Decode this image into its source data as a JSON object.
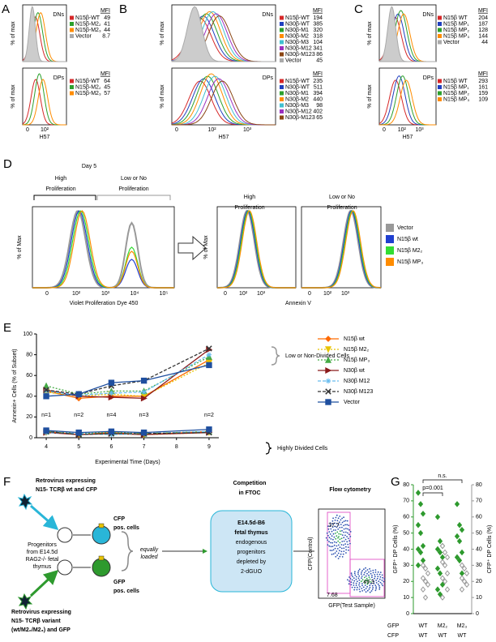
{
  "panel_a": {
    "letter": "A",
    "ylabel": "% of max",
    "xlabel": "H57",
    "xticks": [
      "0",
      "10²"
    ],
    "mfi_header": "MFI",
    "top": {
      "label": "DNs",
      "rows": [
        {
          "name": "N15β-WT",
          "mfi": 49,
          "color": "#d62728"
        },
        {
          "name": "N15β-M2₂",
          "mfi": 41,
          "color": "#2ca02c"
        },
        {
          "name": "N15β-M2₃",
          "mfi": 44,
          "color": "#ff8c00"
        },
        {
          "name": "Vector",
          "mfi": 8.7,
          "color": "#aaaaaa",
          "filled": true
        }
      ]
    },
    "bottom": {
      "label": "DPs",
      "rows": [
        {
          "name": "N15β-WT",
          "mfi": 64,
          "color": "#d62728"
        },
        {
          "name": "N15β-M2₂",
          "mfi": 45,
          "color": "#2ca02c"
        },
        {
          "name": "N15β-M2₃",
          "mfi": 57,
          "color": "#ff8c00"
        }
      ]
    }
  },
  "panel_b": {
    "letter": "B",
    "ylabel": "% of max",
    "xlabel": "H57",
    "xticks": [
      "0",
      "10²",
      "10³"
    ],
    "mfi_header": "MFI",
    "top": {
      "label": "DNs",
      "rows": [
        {
          "name": "N15β-WT",
          "mfi": 194,
          "color": "#d62728"
        },
        {
          "name": "N30β-WT",
          "mfi": 385,
          "color": "#1f3fbf"
        },
        {
          "name": "N30β-M1",
          "mfi": 320,
          "color": "#2ca02c"
        },
        {
          "name": "N30β-M2",
          "mfi": 318,
          "color": "#ff8c00"
        },
        {
          "name": "N30β-M3",
          "mfi": 104,
          "color": "#40c0d0"
        },
        {
          "name": "N30β-M12",
          "mfi": 341,
          "color": "#9b30c0"
        },
        {
          "name": "N30β-M123",
          "mfi": 86,
          "color": "#8b4513"
        },
        {
          "name": "Vector",
          "mfi": 45,
          "color": "#aaaaaa",
          "filled": true
        }
      ]
    },
    "bottom": {
      "label": "DPs",
      "rows": [
        {
          "name": "N15β-WT",
          "mfi": 235,
          "color": "#d62728"
        },
        {
          "name": "N30β-WT",
          "mfi": 511,
          "color": "#1f3fbf"
        },
        {
          "name": "N30β-M1",
          "mfi": 394,
          "color": "#2ca02c"
        },
        {
          "name": "N30β-M2",
          "mfi": 440,
          "color": "#ff8c00"
        },
        {
          "name": "N30β-M3",
          "mfi": 98,
          "color": "#40c0d0"
        },
        {
          "name": "N30β-M12",
          "mfi": 402,
          "color": "#9b30c0"
        },
        {
          "name": "N30β-M123",
          "mfi": 65,
          "color": "#8b4513"
        }
      ]
    }
  },
  "panel_c": {
    "letter": "C",
    "ylabel": "% of max",
    "xlabel": "H57",
    "xticks": [
      "0",
      "10²",
      "10³"
    ],
    "mfi_header": "MFI",
    "top": {
      "label": "DNs",
      "rows": [
        {
          "name": "N15β WT",
          "mfi": 204,
          "color": "#d62728"
        },
        {
          "name": "N15β MP₁",
          "mfi": 187,
          "color": "#1f3fbf"
        },
        {
          "name": "N15β MP₂",
          "mfi": 128,
          "color": "#2ca02c"
        },
        {
          "name": "N15β MP₃",
          "mfi": 144,
          "color": "#ff8c00"
        },
        {
          "name": "Vector",
          "mfi": 44,
          "color": "#aaaaaa",
          "filled": true
        }
      ]
    },
    "bottom": {
      "label": "DPs",
      "rows": [
        {
          "name": "N15β WT",
          "mfi": 293,
          "color": "#d62728"
        },
        {
          "name": "N15β MP₁",
          "mfi": 161,
          "color": "#1f3fbf"
        },
        {
          "name": "N15β MP₂",
          "mfi": 159,
          "color": "#2ca02c"
        },
        {
          "name": "N15β MP₃",
          "mfi": 109,
          "color": "#ff8c00"
        }
      ]
    }
  },
  "panel_d": {
    "letter": "D",
    "day": "Day 5",
    "high": [
      "High",
      "Proliferation"
    ],
    "low": [
      "Low or No",
      "Proliferation"
    ],
    "ylabel": "% of Max",
    "left_xlabel": "Violet Proliferation Dye 450",
    "left_xticks": [
      "0",
      "10²",
      "10³",
      "10⁴",
      "10⁵"
    ],
    "right_high": [
      "High",
      "Proliferation"
    ],
    "right_low": [
      "Low or No",
      "Proliferation"
    ],
    "right_xlabel": "Annexin V",
    "right_xticks": [
      "0",
      "10²",
      "10³"
    ],
    "legend": [
      {
        "name": "Vector",
        "color": "#999999"
      },
      {
        "name": "N15β wt",
        "color": "#1f3fd0"
      },
      {
        "name": "N15β M2₂",
        "color": "#33dd33"
      },
      {
        "name": "N15β MP₃",
        "color": "#ff8c00"
      }
    ]
  },
  "panel_e": {
    "letter": "E",
    "upper_label": "Low or Non-Divided Cells",
    "lower_label": "Highly Divided Cells",
    "n_labels": [
      "n=1",
      "n=2",
      "n=4",
      "n=3",
      "n=2"
    ]
  },
  "panel_f": {
    "letter": "F",
    "retro_top": [
      "Retrovirus expressing",
      "N15- TCRβ wt and CFP"
    ],
    "progenitors": [
      "Progenitors",
      "from E14.5d",
      "RAG2-/- fetal",
      "thymus"
    ],
    "cfp_cells": [
      "CFP",
      "pos. cells"
    ],
    "gfp_cells": [
      "GFP",
      "pos. cells"
    ],
    "loaded": [
      "equally",
      "loaded"
    ],
    "competition": [
      "Competition",
      "in FTOC"
    ],
    "thymus_box": [
      "E14.5d-B6",
      "fetal thymus",
      "endogenous",
      "progenitors",
      "depleted by",
      "2-dGUO"
    ],
    "retro_bottom": [
      "Retrovirus expressing",
      "N15- TCRβ variant",
      "(wt/M2₂/M2₃) and GFP"
    ],
    "flow_title": "Flow cytometry",
    "flow_ylabel": "CFP(Control)",
    "flow_xlabel": "GFP(Test Sample)",
    "gate_top": 37.7,
    "gate_right": 49.3,
    "gate_bottom": 7.68
  },
  "panel_g": {
    "letter": "G"
  },
  "chart_data": [
    {
      "type": "line",
      "ylabel": "Annexin+ Cells (% of Subset)",
      "xlabel": "Experimental Time (Days)",
      "x": [
        4,
        5,
        6,
        7,
        9
      ],
      "xlim": [
        3.7,
        9.3
      ],
      "xticks": [
        4,
        5,
        6,
        7,
        8,
        9
      ],
      "ylim": [
        0,
        100
      ],
      "yticks": [
        0,
        20,
        40,
        60,
        80,
        100
      ],
      "series": [
        {
          "name": "N15β wt",
          "color": "#ff6a00",
          "marker": "diamond",
          "dash": "",
          "values": [
            45,
            38,
            40,
            40,
            75
          ],
          "divided_values": [
            6,
            3,
            5,
            3,
            6
          ]
        },
        {
          "name": "N15β M2₂",
          "color": "#e8c400",
          "marker": "tri-down",
          "dash": "2,2",
          "values": [
            44,
            40,
            42,
            40,
            72
          ],
          "divided_values": [
            5,
            4,
            4,
            3,
            5
          ]
        },
        {
          "name": "N15β MP₃",
          "color": "#44aa44",
          "marker": "tri-up",
          "dash": "2,2",
          "values": [
            50,
            42,
            45,
            45,
            78
          ],
          "divided_values": [
            6,
            4,
            5,
            4,
            6
          ]
        },
        {
          "name": "N30β wt",
          "color": "#8b1a1a",
          "marker": "tri-right",
          "dash": "",
          "values": [
            46,
            40,
            39,
            38,
            85
          ],
          "divided_values": [
            5,
            3,
            4,
            3,
            5
          ]
        },
        {
          "name": "N30β M12",
          "color": "#66bbee",
          "marker": "star",
          "dash": "4,2",
          "values": [
            45,
            41,
            43,
            44,
            80
          ],
          "divided_values": [
            5,
            4,
            3,
            4,
            6
          ]
        },
        {
          "name": "N30β M123",
          "color": "#333333",
          "marker": "x",
          "dash": "4,2",
          "values": [
            46,
            42,
            50,
            55,
            86
          ],
          "divided_values": [
            6,
            3,
            4,
            4,
            5
          ]
        },
        {
          "name": "Vector",
          "color": "#1f4f9f",
          "marker": "square",
          "dash": "",
          "values": [
            40,
            42,
            53,
            55,
            70
          ],
          "divided_values": [
            7,
            5,
            6,
            5,
            8
          ]
        }
      ]
    },
    {
      "type": "strip",
      "ylabel": "GFP⁺ DP Cells (%)",
      "y2label": "CFP⁺ DP Cells (%)",
      "categories": [
        "WT",
        "M2₂",
        "M2₃"
      ],
      "ylim": [
        0,
        80
      ],
      "yticks": [
        0,
        10,
        20,
        30,
        40,
        50,
        60,
        70,
        80
      ],
      "y2lim": [
        0,
        80
      ],
      "y2ticks": [
        0,
        10,
        20,
        30,
        40,
        50,
        60,
        70,
        80
      ],
      "annotations": [
        "p=0.001",
        "n.s."
      ],
      "series": [
        {
          "name": "GFP",
          "color": "#2e9a2e",
          "axis": "y",
          "category_labels": [
            "WT",
            "M2₂",
            "M2₃"
          ],
          "values": [
            [
              75,
              68,
              62,
              55,
              50,
              42,
              40,
              38,
              33,
              30
            ],
            [
              60,
              45,
              42,
              40,
              38,
              35,
              28,
              25,
              18,
              15,
              12
            ],
            [
              68,
              55,
              52,
              48,
              45,
              38,
              35,
              33,
              25
            ]
          ]
        },
        {
          "name": "CFP",
          "color": "#999999",
          "axis": "y2",
          "category_labels": [
            "WT",
            "WT",
            "WT"
          ],
          "values": [
            [
              30,
              28,
              25,
              22,
              20,
              18,
              15,
              10
            ],
            [
              42,
              38,
              35,
              32,
              30,
              25,
              22,
              20,
              15,
              10
            ],
            [
              30,
              28,
              25,
              22,
              20,
              18,
              15
            ]
          ]
        }
      ]
    }
  ]
}
